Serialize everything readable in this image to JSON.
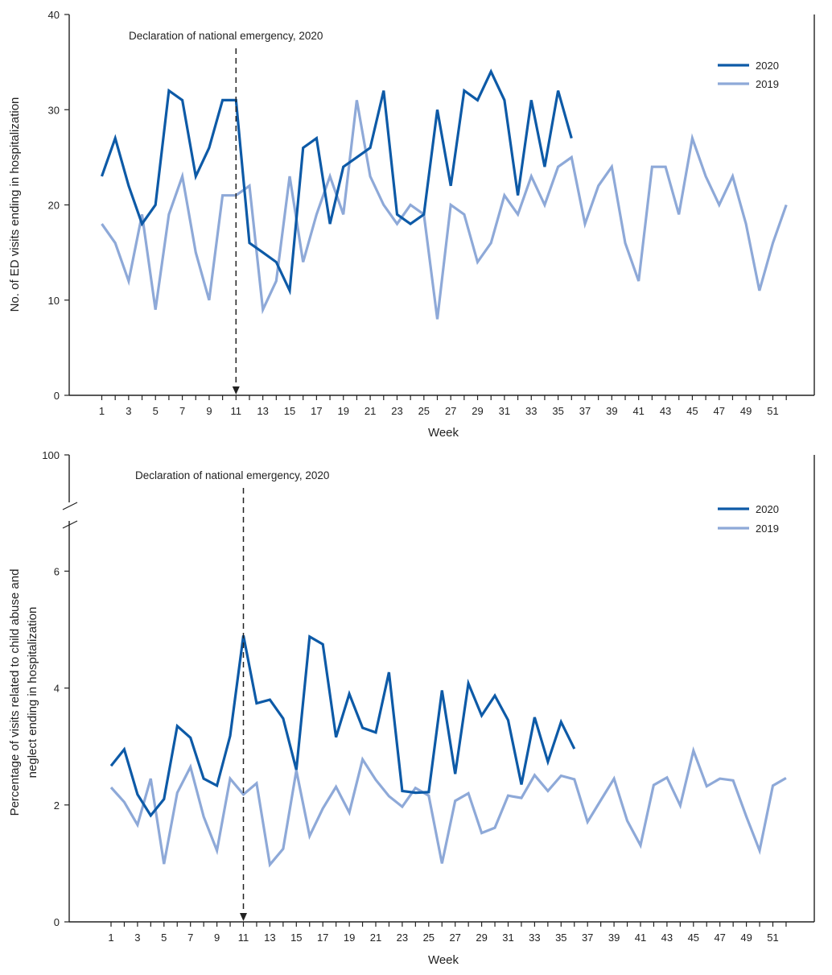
{
  "colors": {
    "s2020": "#0d5aa7",
    "s2019": "#8ea9d8"
  },
  "chart_data": [
    {
      "type": "line",
      "ylabel": "No. of ED visits ending in hospitalization",
      "xlabel": "Week",
      "ylim": [
        0,
        40
      ],
      "yticks": [
        0,
        10,
        20,
        30,
        40
      ],
      "xticks": [
        1,
        3,
        5,
        7,
        9,
        11,
        13,
        15,
        17,
        19,
        21,
        23,
        25,
        27,
        29,
        31,
        33,
        35,
        37,
        39,
        41,
        43,
        45,
        47,
        49,
        51
      ],
      "annotation": {
        "text": "Declaration of national emergency, 2020",
        "week": 11
      },
      "legend": [
        "2020",
        "2019"
      ],
      "series": [
        {
          "name": "2020",
          "x": [
            1,
            2,
            3,
            4,
            5,
            6,
            7,
            8,
            9,
            10,
            11,
            12,
            13,
            14,
            15,
            16,
            17,
            18,
            19,
            20,
            21,
            22,
            23,
            24,
            25,
            26,
            27,
            28,
            29,
            30,
            31,
            32,
            33,
            34,
            35,
            36
          ],
          "values": [
            23,
            27,
            22,
            18,
            20,
            32,
            31,
            23,
            26,
            31,
            31,
            16,
            15,
            14,
            11,
            26,
            27,
            18,
            24,
            25,
            26,
            32,
            19,
            18,
            19,
            30,
            22,
            32,
            31,
            34,
            31,
            21,
            31,
            24,
            32,
            27
          ]
        },
        {
          "name": "2019",
          "x": [
            1,
            2,
            3,
            4,
            5,
            6,
            7,
            8,
            9,
            10,
            11,
            12,
            13,
            14,
            15,
            16,
            17,
            18,
            19,
            20,
            21,
            22,
            23,
            24,
            25,
            26,
            27,
            28,
            29,
            30,
            31,
            32,
            33,
            34,
            35,
            36,
            37,
            38,
            39,
            40,
            41,
            42,
            43,
            44,
            45,
            46,
            47,
            48,
            49,
            50,
            51,
            52
          ],
          "values": [
            18,
            16,
            12,
            19,
            9,
            19,
            23,
            15,
            10,
            21,
            21,
            22,
            9,
            12,
            23,
            14,
            19,
            23,
            19,
            31,
            23,
            20,
            18,
            20,
            19,
            8,
            20,
            19,
            14,
            16,
            21,
            19,
            23,
            20,
            24,
            25,
            18,
            22,
            24,
            16,
            12,
            24,
            24,
            19,
            27,
            23,
            20,
            23,
            18,
            11,
            16,
            20
          ]
        }
      ]
    },
    {
      "type": "line",
      "ylabel_line1": "Percentage of visits related to child abuse and",
      "ylabel_line2": "neglect ending in hospitalization",
      "xlabel": "Week",
      "ylim": [
        0,
        7
      ],
      "yticks": [
        0,
        2,
        4,
        6
      ],
      "ybreak_top_label": "100",
      "xticks": [
        1,
        3,
        5,
        7,
        9,
        11,
        13,
        15,
        17,
        19,
        21,
        23,
        25,
        27,
        29,
        31,
        33,
        35,
        37,
        39,
        41,
        43,
        45,
        47,
        49,
        51
      ],
      "annotation": {
        "text": "Declaration of national emergency, 2020",
        "week": 11
      },
      "legend": [
        "2020",
        "2019"
      ],
      "series": [
        {
          "name": "2020",
          "x": [
            1,
            2,
            3,
            4,
            5,
            6,
            7,
            8,
            9,
            10,
            11,
            12,
            13,
            14,
            15,
            16,
            17,
            18,
            19,
            20,
            21,
            22,
            23,
            24,
            25,
            26,
            27,
            28,
            29,
            30,
            31,
            32,
            33,
            34,
            35,
            36
          ],
          "values": [
            2.67,
            2.95,
            2.18,
            1.82,
            2.1,
            3.35,
            3.15,
            2.45,
            2.33,
            3.18,
            4.9,
            3.74,
            3.8,
            3.48,
            2.6,
            4.88,
            4.75,
            3.16,
            3.9,
            3.32,
            3.24,
            4.27,
            2.24,
            2.21,
            2.22,
            3.96,
            2.53,
            4.08,
            3.53,
            3.87,
            3.45,
            2.35,
            3.5,
            2.74,
            3.42,
            2.96
          ]
        },
        {
          "name": "2019",
          "x": [
            1,
            2,
            3,
            4,
            5,
            6,
            7,
            8,
            9,
            10,
            11,
            12,
            13,
            14,
            15,
            16,
            17,
            18,
            19,
            20,
            21,
            22,
            23,
            24,
            25,
            26,
            27,
            28,
            29,
            30,
            31,
            32,
            33,
            34,
            35,
            36,
            37,
            38,
            39,
            40,
            41,
            42,
            43,
            44,
            45,
            46,
            47,
            48,
            49,
            50,
            51,
            52
          ],
          "values": [
            2.3,
            2.05,
            1.66,
            2.45,
            0.99,
            2.21,
            2.65,
            1.8,
            1.22,
            2.45,
            2.18,
            2.37,
            0.98,
            1.25,
            2.59,
            1.47,
            1.94,
            2.31,
            1.87,
            2.78,
            2.43,
            2.15,
            1.97,
            2.29,
            2.16,
            1.0,
            2.07,
            2.2,
            1.52,
            1.61,
            2.16,
            2.12,
            2.51,
            2.24,
            2.5,
            2.44,
            1.71,
            2.08,
            2.45,
            1.73,
            1.31,
            2.34,
            2.47,
            1.99,
            2.93,
            2.32,
            2.45,
            2.42,
            1.8,
            1.22,
            2.33,
            2.46
          ]
        }
      ]
    }
  ]
}
